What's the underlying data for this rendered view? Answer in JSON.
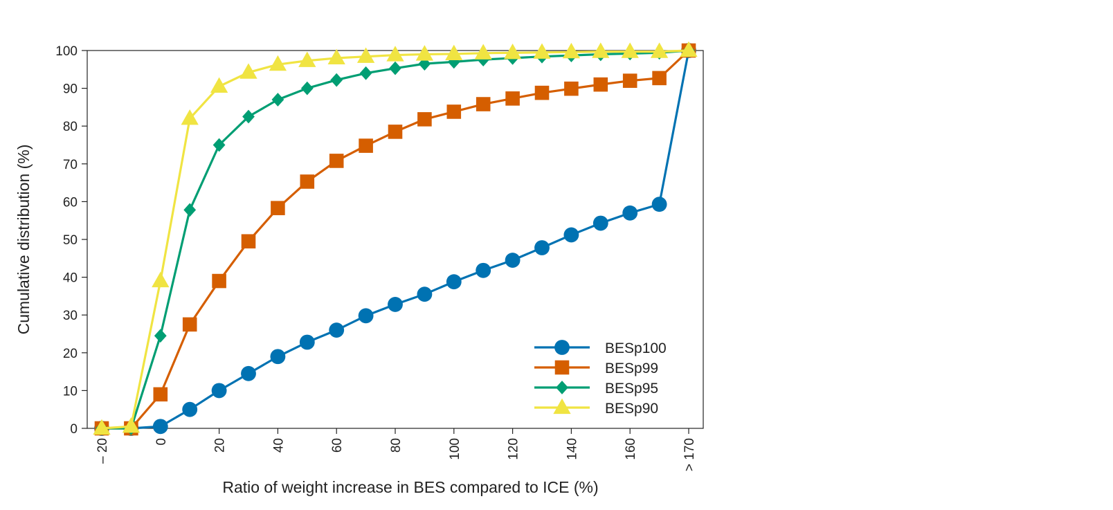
{
  "chart_data": {
    "type": "line",
    "xlabel": "Ratio of weight increase in BES compared to ICE (%)",
    "ylabel": "Cumulative distribution (%)",
    "xlim": [
      -20,
      170
    ],
    "ylim": [
      0,
      100
    ],
    "x": [
      -20,
      -10,
      0,
      10,
      20,
      30,
      40,
      50,
      60,
      70,
      80,
      90,
      100,
      110,
      120,
      130,
      140,
      150,
      160,
      170,
      180
    ],
    "x_tick_values": [
      -20,
      0,
      20,
      40,
      60,
      80,
      100,
      120,
      140,
      160,
      180
    ],
    "x_tick_labels": [
      "– 20",
      "0",
      "20",
      "40",
      "60",
      "80",
      "100",
      "120",
      "140",
      "160",
      "> 170"
    ],
    "y_ticks": [
      0,
      10,
      20,
      30,
      40,
      50,
      60,
      70,
      80,
      90,
      100
    ],
    "legend_position": "bottom-right",
    "series": [
      {
        "name": "BESp100",
        "color": "#0072B2",
        "marker": "circle",
        "values": [
          0,
          0,
          0.5,
          5,
          10,
          14.5,
          19,
          22.8,
          26,
          29.8,
          32.8,
          35.5,
          38.8,
          41.8,
          44.5,
          47.8,
          51.2,
          54.3,
          57,
          59.3,
          100
        ]
      },
      {
        "name": "BESp99",
        "color": "#D55E00",
        "marker": "square",
        "values": [
          0,
          0,
          9,
          27.5,
          39,
          49.5,
          58.3,
          65.3,
          70.8,
          74.8,
          78.5,
          81.8,
          83.8,
          85.8,
          87.3,
          88.8,
          89.9,
          91,
          92,
          92.7,
          100
        ]
      },
      {
        "name": "BESp95",
        "color": "#009E73",
        "marker": "diamond",
        "values": [
          0,
          0,
          24.5,
          57.8,
          75,
          82.5,
          87,
          90,
          92.2,
          94,
          95.3,
          96.5,
          97,
          97.6,
          98,
          98.4,
          98.7,
          99,
          99.2,
          99.4,
          100
        ]
      },
      {
        "name": "BESp90",
        "color": "#F0E442",
        "marker": "triangle",
        "values": [
          0,
          0.5,
          39,
          82,
          90.5,
          94.2,
          96.3,
          97.3,
          98,
          98.4,
          98.8,
          99,
          99.1,
          99.3,
          99.4,
          99.5,
          99.6,
          99.7,
          99.7,
          99.7,
          100
        ]
      }
    ]
  }
}
